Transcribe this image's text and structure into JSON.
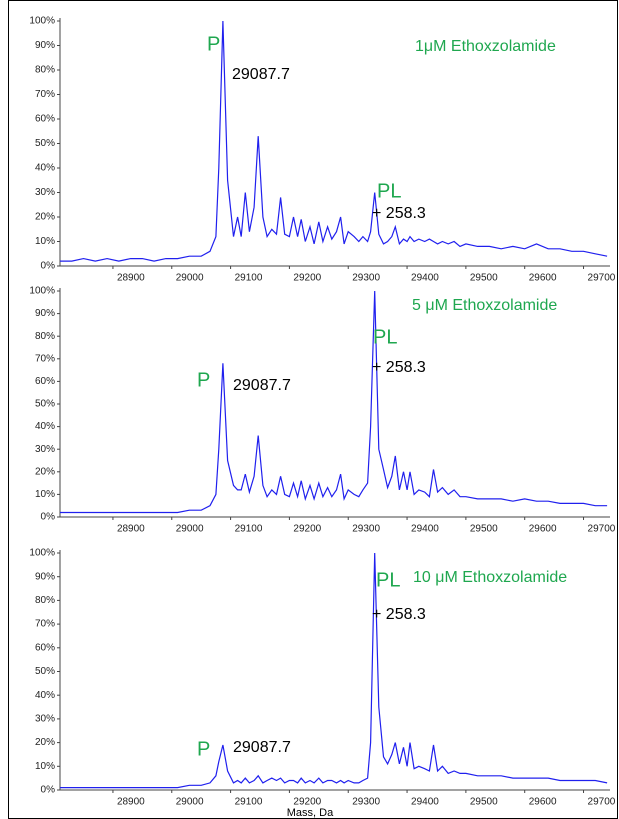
{
  "x_axis_label": "Mass, Da",
  "chart_data": [
    {
      "type": "line",
      "color": "#2020ee",
      "annotations": {
        "peak_p": "P",
        "mass_p": "29087.7",
        "peak_pl": "PL",
        "shift_pl": "+ 258.3",
        "label": "1μM Ethoxzolamide"
      },
      "x": [
        28810,
        28830,
        28850,
        28870,
        28890,
        28910,
        28930,
        28950,
        28970,
        28990,
        29010,
        29030,
        29050,
        29065,
        29075,
        29080,
        29087,
        29095,
        29105,
        29112,
        29118,
        29125,
        29132,
        29140,
        29147,
        29155,
        29162,
        29170,
        29178,
        29185,
        29192,
        29200,
        29207,
        29214,
        29220,
        29227,
        29235,
        29242,
        29250,
        29257,
        29265,
        29272,
        29280,
        29287,
        29293,
        29300,
        29310,
        29318,
        29325,
        29333,
        29338,
        29345,
        29352,
        29360,
        29367,
        29374,
        29380,
        29387,
        29394,
        29400,
        29405,
        29412,
        29420,
        29430,
        29438,
        29445,
        29452,
        29460,
        29470,
        29480,
        29490,
        29500,
        29520,
        29540,
        29560,
        29580,
        29600,
        29620,
        29640,
        29660,
        29680,
        29700,
        29720,
        29740
      ],
      "values": [
        2,
        2,
        3,
        2,
        3,
        2,
        3,
        3,
        2,
        3,
        3,
        4,
        4,
        6,
        12,
        40,
        100,
        35,
        12,
        20,
        12,
        30,
        14,
        24,
        53,
        20,
        12,
        15,
        13,
        28,
        13,
        12,
        20,
        12,
        19,
        10,
        16,
        9,
        18,
        10,
        16,
        11,
        14,
        20,
        9,
        14,
        12,
        10,
        12,
        10,
        14,
        30,
        13,
        9,
        10,
        12,
        16,
        9,
        11,
        10,
        12,
        10,
        11,
        10,
        11,
        10,
        9,
        10,
        9,
        10,
        8,
        9,
        8,
        8,
        7,
        8,
        7,
        9,
        7,
        7,
        6,
        6,
        5,
        4
      ],
      "xlim": [
        28810,
        29745
      ],
      "xticks": [
        28900,
        29000,
        29100,
        29200,
        29300,
        29400,
        29500,
        29600,
        29700
      ],
      "ylim": [
        0,
        100
      ],
      "yticks": [
        {
          "value": 0,
          "label": "0%"
        },
        {
          "value": 10,
          "label": "10%"
        },
        {
          "value": 20,
          "label": "20%"
        },
        {
          "value": 30,
          "label": "30%"
        },
        {
          "value": 40,
          "label": "40%"
        },
        {
          "value": 50,
          "label": "50%"
        },
        {
          "value": 60,
          "label": "60%"
        },
        {
          "value": 70,
          "label": "70%"
        },
        {
          "value": 80,
          "label": "80%"
        },
        {
          "value": 90,
          "label": "90%"
        },
        {
          "value": 100,
          "label": "100%"
        }
      ]
    },
    {
      "type": "line",
      "color": "#2020ee",
      "annotations": {
        "peak_p": "P",
        "mass_p": "29087.7",
        "peak_pl": "PL",
        "shift_pl": "+ 258.3",
        "label": "5 μM Ethoxzolamide"
      },
      "x": [
        28810,
        28830,
        28850,
        28870,
        28890,
        28910,
        28930,
        28950,
        28970,
        28990,
        29010,
        29030,
        29050,
        29065,
        29075,
        29080,
        29087,
        29095,
        29105,
        29112,
        29118,
        29125,
        29132,
        29140,
        29147,
        29155,
        29162,
        29170,
        29178,
        29185,
        29192,
        29200,
        29207,
        29214,
        29220,
        29227,
        29235,
        29242,
        29250,
        29257,
        29265,
        29272,
        29280,
        29287,
        29293,
        29300,
        29310,
        29318,
        29325,
        29333,
        29338,
        29345,
        29352,
        29360,
        29367,
        29374,
        29380,
        29387,
        29394,
        29400,
        29405,
        29412,
        29420,
        29430,
        29438,
        29445,
        29452,
        29460,
        29470,
        29480,
        29490,
        29500,
        29520,
        29540,
        29560,
        29580,
        29600,
        29620,
        29640,
        29660,
        29680,
        29700,
        29720,
        29740
      ],
      "values": [
        2,
        2,
        2,
        2,
        2,
        2,
        2,
        2,
        2,
        2,
        2,
        3,
        3,
        5,
        10,
        30,
        68,
        25,
        14,
        12,
        12,
        19,
        11,
        18,
        36,
        14,
        9,
        12,
        10,
        18,
        10,
        9,
        15,
        9,
        16,
        8,
        14,
        8,
        15,
        9,
        13,
        9,
        12,
        19,
        8,
        12,
        10,
        9,
        12,
        15,
        40,
        100,
        30,
        21,
        13,
        18,
        27,
        12,
        20,
        12,
        20,
        10,
        12,
        11,
        9,
        21,
        11,
        13,
        10,
        12,
        9,
        9,
        8,
        8,
        8,
        7,
        8,
        7,
        7,
        6,
        6,
        6,
        5,
        5
      ],
      "xlim": [
        28810,
        29745
      ],
      "xticks": [
        28900,
        29000,
        29100,
        29200,
        29300,
        29400,
        29500,
        29600,
        29700
      ],
      "ylim": [
        0,
        100
      ],
      "yticks": [
        {
          "value": 0,
          "label": "0%"
        },
        {
          "value": 10,
          "label": "10%"
        },
        {
          "value": 20,
          "label": "20%"
        },
        {
          "value": 30,
          "label": "30%"
        },
        {
          "value": 40,
          "label": "40%"
        },
        {
          "value": 50,
          "label": "50%"
        },
        {
          "value": 60,
          "label": "60%"
        },
        {
          "value": 70,
          "label": "70%"
        },
        {
          "value": 80,
          "label": "80%"
        },
        {
          "value": 90,
          "label": "90%"
        },
        {
          "value": 100,
          "label": "100%"
        }
      ]
    },
    {
      "type": "line",
      "color": "#2020ee",
      "annotations": {
        "peak_p": "P",
        "mass_p": "29087.7",
        "peak_pl": "PL",
        "shift_pl": "+ 258.3",
        "label": "10 μM Ethoxzolamide"
      },
      "x": [
        28810,
        28830,
        28850,
        28870,
        28890,
        28910,
        28930,
        28950,
        28970,
        28990,
        29010,
        29030,
        29050,
        29065,
        29075,
        29080,
        29087,
        29095,
        29105,
        29112,
        29118,
        29125,
        29132,
        29140,
        29147,
        29155,
        29162,
        29170,
        29178,
        29185,
        29192,
        29200,
        29207,
        29214,
        29220,
        29227,
        29235,
        29242,
        29250,
        29257,
        29265,
        29272,
        29280,
        29287,
        29293,
        29300,
        29310,
        29318,
        29325,
        29333,
        29338,
        29345,
        29352,
        29360,
        29367,
        29374,
        29380,
        29387,
        29394,
        29400,
        29405,
        29412,
        29420,
        29430,
        29438,
        29445,
        29452,
        29460,
        29470,
        29480,
        29490,
        29500,
        29520,
        29540,
        29560,
        29580,
        29600,
        29620,
        29640,
        29660,
        29680,
        29700,
        29720,
        29740
      ],
      "values": [
        1,
        1,
        1,
        1,
        1,
        1,
        1,
        1,
        1,
        1,
        1,
        2,
        2,
        3,
        6,
        12,
        19,
        8,
        3,
        4,
        3,
        5,
        3,
        4,
        6,
        3,
        4,
        5,
        4,
        5,
        3,
        4,
        4,
        3,
        5,
        3,
        4,
        3,
        5,
        3,
        4,
        4,
        3,
        4,
        3,
        4,
        3,
        3,
        4,
        5,
        20,
        100,
        35,
        14,
        11,
        15,
        20,
        11,
        18,
        10,
        20,
        9,
        10,
        9,
        8,
        19,
        8,
        10,
        7,
        8,
        7,
        7,
        6,
        6,
        6,
        5,
        5,
        5,
        5,
        4,
        4,
        4,
        4,
        3
      ],
      "xlim": [
        28810,
        29745
      ],
      "xticks": [
        28900,
        29000,
        29100,
        29200,
        29300,
        29400,
        29500,
        29600,
        29700
      ],
      "ylim": [
        0,
        100
      ],
      "yticks": [
        {
          "value": 0,
          "label": "0%"
        },
        {
          "value": 10,
          "label": "10%"
        },
        {
          "value": 20,
          "label": "20%"
        },
        {
          "value": 30,
          "label": "30%"
        },
        {
          "value": 40,
          "label": "40%"
        },
        {
          "value": 50,
          "label": "50%"
        },
        {
          "value": 60,
          "label": "60%"
        },
        {
          "value": 70,
          "label": "70%"
        },
        {
          "value": 80,
          "label": "80%"
        },
        {
          "value": 90,
          "label": "90%"
        },
        {
          "value": 100,
          "label": "100%"
        }
      ]
    }
  ]
}
